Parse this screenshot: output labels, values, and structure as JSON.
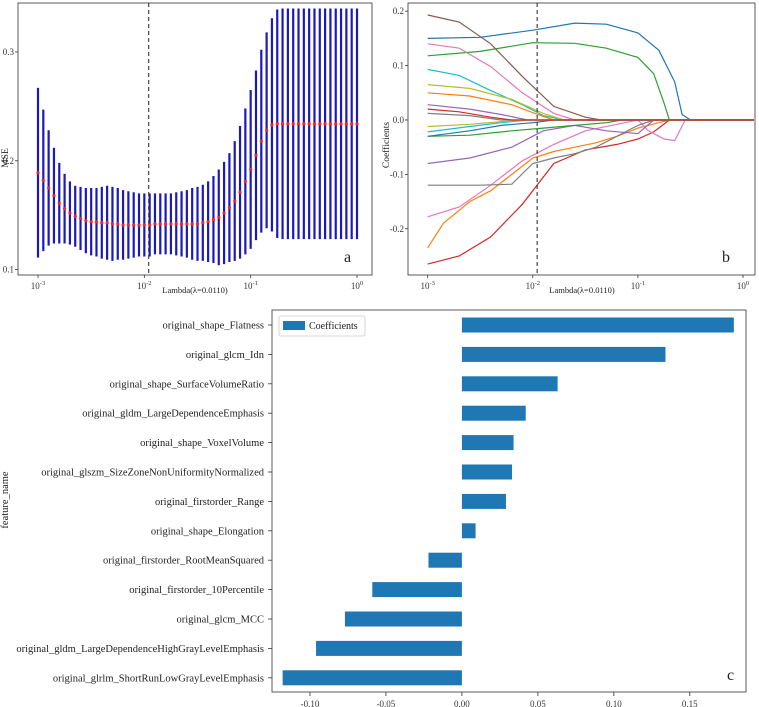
{
  "chart_data": [
    {
      "panel": "a",
      "type": "line",
      "xlabel": "Lambda(λ=0.0110)",
      "ylabel": "MSE",
      "xscale": "log",
      "xlim": [
        0.001,
        1.0
      ],
      "ylim": [
        0.095,
        0.345
      ],
      "xticks": [
        0.001,
        0.01,
        0.1,
        1.0
      ],
      "xticklabels": [
        "10-3",
        "10-2",
        "10-1",
        "100"
      ],
      "yticks": [
        0.1,
        0.2,
        0.3
      ],
      "yticklabels": [
        "0.1",
        "0.2",
        "0.3"
      ],
      "selected_lambda": 0.011,
      "series": [
        {
          "name": "MSE",
          "log10_lambda": [
            -3.0,
            -2.95,
            -2.9,
            -2.85,
            -2.8,
            -2.75,
            -2.7,
            -2.65,
            -2.6,
            -2.55,
            -2.5,
            -2.45,
            -2.4,
            -2.35,
            -2.3,
            -2.25,
            -2.2,
            -2.15,
            -2.1,
            -2.05,
            -2.0,
            -1.95,
            -1.9,
            -1.85,
            -1.8,
            -1.75,
            -1.7,
            -1.65,
            -1.6,
            -1.55,
            -1.5,
            -1.45,
            -1.4,
            -1.35,
            -1.3,
            -1.25,
            -1.2,
            -1.15,
            -1.1,
            -1.05,
            -1.0,
            -0.95,
            -0.9,
            -0.85,
            -0.8,
            -0.75,
            -0.7,
            -0.65,
            -0.6,
            -0.55,
            -0.5,
            -0.45,
            -0.4,
            -0.35,
            -0.3,
            -0.25,
            -0.2,
            -0.15,
            -0.1,
            -0.05,
            0.0
          ],
          "mean": [
            0.189,
            0.182,
            0.175,
            0.168,
            0.161,
            0.156,
            0.152,
            0.149,
            0.147,
            0.145,
            0.144,
            0.144,
            0.143,
            0.143,
            0.142,
            0.142,
            0.141,
            0.141,
            0.141,
            0.141,
            0.141,
            0.141,
            0.142,
            0.142,
            0.142,
            0.142,
            0.142,
            0.142,
            0.142,
            0.142,
            0.142,
            0.143,
            0.144,
            0.146,
            0.148,
            0.152,
            0.157,
            0.163,
            0.171,
            0.181,
            0.192,
            0.205,
            0.218,
            0.228,
            0.233,
            0.234,
            0.234,
            0.234,
            0.234,
            0.234,
            0.234,
            0.234,
            0.234,
            0.234,
            0.234,
            0.234,
            0.234,
            0.234,
            0.234,
            0.234,
            0.234
          ],
          "upper": [
            0.267,
            0.247,
            0.228,
            0.212,
            0.198,
            0.188,
            0.181,
            0.177,
            0.176,
            0.175,
            0.175,
            0.175,
            0.176,
            0.177,
            0.176,
            0.175,
            0.173,
            0.172,
            0.171,
            0.17,
            0.17,
            0.17,
            0.17,
            0.17,
            0.17,
            0.17,
            0.171,
            0.172,
            0.173,
            0.175,
            0.176,
            0.178,
            0.181,
            0.186,
            0.192,
            0.199,
            0.207,
            0.218,
            0.232,
            0.248,
            0.265,
            0.283,
            0.302,
            0.318,
            0.331,
            0.339,
            0.34,
            0.34,
            0.34,
            0.34,
            0.34,
            0.34,
            0.34,
            0.34,
            0.34,
            0.34,
            0.34,
            0.34,
            0.34,
            0.34,
            0.34
          ],
          "lower": [
            0.111,
            0.117,
            0.122,
            0.124,
            0.124,
            0.124,
            0.123,
            0.121,
            0.118,
            0.115,
            0.113,
            0.112,
            0.11,
            0.109,
            0.108,
            0.109,
            0.109,
            0.11,
            0.111,
            0.112,
            0.112,
            0.112,
            0.114,
            0.114,
            0.114,
            0.114,
            0.113,
            0.112,
            0.111,
            0.109,
            0.108,
            0.108,
            0.107,
            0.106,
            0.104,
            0.105,
            0.107,
            0.108,
            0.11,
            0.114,
            0.119,
            0.127,
            0.134,
            0.138,
            0.135,
            0.129,
            0.128,
            0.128,
            0.128,
            0.128,
            0.128,
            0.128,
            0.128,
            0.128,
            0.128,
            0.128,
            0.128,
            0.128,
            0.128,
            0.128,
            0.128
          ]
        }
      ]
    },
    {
      "panel": "b",
      "type": "line",
      "xlabel": "Lambda(λ=0.0110)",
      "ylabel": "Coefficients",
      "xscale": "log",
      "xlim": [
        0.00065,
        1.3
      ],
      "ylim": [
        -0.285,
        0.215
      ],
      "xticks": [
        0.001,
        0.01,
        0.1,
        1.0
      ],
      "xticklabels": [
        "10-3",
        "10-2",
        "10-1",
        "100"
      ],
      "yticks": [
        -0.2,
        -0.1,
        0.0,
        0.1,
        0.2
      ],
      "yticklabels": [
        "-0.2",
        "-0.1",
        "0.0",
        "0.1",
        "0.2"
      ],
      "selected_lambda": 0.011,
      "series": [
        {
          "name": "path1",
          "color": "#1f77b4",
          "log10_lambda": [
            -3.0,
            -2.5,
            -2.0,
            -1.6,
            -1.3,
            -1.0,
            -0.8,
            -0.65,
            -0.58,
            -0.5,
            0.0
          ],
          "values": [
            0.15,
            0.152,
            0.165,
            0.178,
            0.176,
            0.16,
            0.128,
            0.07,
            0.01,
            0.0,
            0.0
          ]
        },
        {
          "name": "path2",
          "color": "#2ca02c",
          "log10_lambda": [
            -3.0,
            -2.5,
            -2.0,
            -1.6,
            -1.3,
            -1.0,
            -0.85,
            -0.75,
            -0.7,
            0.0
          ],
          "values": [
            0.118,
            0.126,
            0.142,
            0.141,
            0.132,
            0.115,
            0.085,
            0.03,
            0.0,
            0.0
          ]
        },
        {
          "name": "path3",
          "color": "#8c564b",
          "log10_lambda": [
            -3.0,
            -2.7,
            -2.4,
            -2.1,
            -1.8,
            -1.5,
            -1.35,
            0.0
          ],
          "values": [
            0.193,
            0.18,
            0.14,
            0.08,
            0.025,
            0.005,
            0.0,
            0.0
          ]
        },
        {
          "name": "path4",
          "color": "#e377c2",
          "log10_lambda": [
            -3.0,
            -2.7,
            -2.4,
            -2.1,
            -1.8,
            -1.6,
            0.0
          ],
          "values": [
            0.14,
            0.132,
            0.098,
            0.05,
            0.012,
            0.0,
            0.0
          ]
        },
        {
          "name": "path5",
          "color": "#17becf",
          "log10_lambda": [
            -3.0,
            -2.7,
            -2.4,
            -2.1,
            -1.9,
            -1.7,
            0.0
          ],
          "values": [
            0.093,
            0.082,
            0.054,
            0.028,
            0.008,
            0.0,
            0.0
          ]
        },
        {
          "name": "path6",
          "color": "#bcbd22",
          "log10_lambda": [
            -3.0,
            -2.6,
            -2.2,
            -1.9,
            -1.7,
            0.0
          ],
          "values": [
            0.065,
            0.058,
            0.038,
            0.012,
            0.0,
            0.0
          ]
        },
        {
          "name": "path7",
          "color": "#ff7f0e",
          "log10_lambda": [
            -3.0,
            -2.6,
            -2.2,
            -1.95,
            -1.8,
            0.0
          ],
          "values": [
            0.05,
            0.044,
            0.028,
            0.01,
            0.0,
            0.0
          ]
        },
        {
          "name": "path8",
          "color": "#9467bd",
          "log10_lambda": [
            -3.0,
            -2.6,
            -2.3,
            -2.05,
            0.0
          ],
          "values": [
            0.028,
            0.02,
            0.01,
            0.0,
            0.0
          ]
        },
        {
          "name": "path9",
          "color": "#7f7f7f",
          "log10_lambda": [
            -3.0,
            -2.6,
            -2.3,
            0.0
          ],
          "values": [
            0.012,
            0.008,
            0.0,
            0.0
          ]
        },
        {
          "name": "path10",
          "color": "#d62728",
          "log10_lambda": [
            -3.0,
            -2.7,
            -2.4,
            -2.1,
            -1.8,
            -1.5,
            -1.2,
            -1.0,
            -0.85,
            -0.7,
            0.0
          ],
          "values": [
            -0.265,
            -0.25,
            -0.215,
            -0.155,
            -0.08,
            -0.055,
            -0.045,
            -0.035,
            -0.022,
            0.0,
            0.0
          ]
        },
        {
          "name": "path11",
          "color": "#ff7f0e",
          "log10_lambda": [
            -3.0,
            -2.85,
            -2.6,
            -2.4,
            -2.2,
            -2.0,
            -1.8,
            -1.6,
            -1.4,
            -1.2,
            -1.0,
            -0.8,
            -0.7,
            0.0
          ],
          "values": [
            -0.235,
            -0.19,
            -0.15,
            -0.13,
            -0.1,
            -0.07,
            -0.058,
            -0.05,
            -0.042,
            -0.03,
            -0.015,
            -0.005,
            0.0,
            0.0
          ]
        },
        {
          "name": "path12",
          "color": "#e377c2",
          "log10_lambda": [
            -3.0,
            -2.7,
            -2.4,
            -2.1,
            -1.8,
            -1.5,
            -1.2,
            -1.0,
            -0.9,
            -0.75,
            -0.65,
            -0.55,
            0.0
          ],
          "values": [
            -0.178,
            -0.16,
            -0.12,
            -0.075,
            -0.045,
            -0.02,
            -0.008,
            0.0,
            -0.02,
            -0.035,
            -0.038,
            0.0,
            0.0
          ]
        },
        {
          "name": "path13",
          "color": "#7f7f7f",
          "log10_lambda": [
            -3.0,
            -2.5,
            -2.2,
            -2.0,
            -1.8,
            -1.6,
            -1.4,
            -1.2,
            -1.0,
            -0.85,
            0.0
          ],
          "values": [
            -0.12,
            -0.12,
            -0.118,
            -0.08,
            -0.07,
            -0.062,
            -0.05,
            -0.03,
            -0.01,
            0.0,
            0.0
          ]
        },
        {
          "name": "path14",
          "color": "#9467bd",
          "log10_lambda": [
            -3.0,
            -2.6,
            -2.2,
            -1.9,
            -1.6,
            -1.3,
            -1.0,
            -0.85,
            0.0
          ],
          "values": [
            -0.08,
            -0.07,
            -0.05,
            -0.02,
            -0.01,
            -0.02,
            -0.025,
            0.0,
            0.0
          ]
        },
        {
          "name": "path15",
          "color": "#2ca02c",
          "log10_lambda": [
            -3.0,
            -2.6,
            -2.2,
            -1.9,
            -1.6,
            -1.3,
            -1.15,
            0.0
          ],
          "values": [
            -0.03,
            -0.028,
            -0.02,
            -0.015,
            -0.01,
            -0.005,
            0.0,
            0.0
          ]
        },
        {
          "name": "path16",
          "color": "#1f77b4",
          "log10_lambda": [
            -3.0,
            -2.6,
            -2.3,
            -2.0,
            -1.8,
            0.0
          ],
          "values": [
            -0.03,
            -0.02,
            -0.01,
            -0.005,
            0.0,
            0.0
          ]
        },
        {
          "name": "path17",
          "color": "#17becf",
          "log10_lambda": [
            -3.0,
            -2.6,
            -2.3,
            -2.05,
            0.0
          ],
          "values": [
            -0.022,
            -0.012,
            -0.005,
            0.0,
            0.0
          ]
        },
        {
          "name": "path18",
          "color": "#bcbd22",
          "log10_lambda": [
            -3.0,
            -2.6,
            -2.3,
            -2.05,
            0.0
          ],
          "values": [
            -0.012,
            -0.008,
            -0.003,
            0.0,
            0.0
          ]
        },
        {
          "name": "path19",
          "color": "#d62728",
          "log10_lambda": [
            -3.0,
            -2.7,
            -2.4,
            -2.2,
            0.0
          ],
          "values": [
            0.02,
            0.015,
            0.005,
            0.0,
            0.0
          ]
        }
      ]
    },
    {
      "panel": "c",
      "type": "bar",
      "orientation": "horizontal",
      "ylabel": "feature_name",
      "legend": "Coefficients",
      "legend_position": "top-left",
      "xlim": [
        -0.125,
        0.187
      ],
      "xticks": [
        -0.1,
        -0.05,
        0.0,
        0.05,
        0.1,
        0.15
      ],
      "xticklabels": [
        "-0.10",
        "-0.05",
        "0.00",
        "0.05",
        "0.10",
        "0.15"
      ],
      "color": "#1f77b4",
      "categories": [
        "original_shape_Flatness",
        "original_glcm_Idn",
        "original_shape_SurfaceVolumeRatio",
        "original_gldm_LargeDependenceEmphasis",
        "original_shape_VoxelVolume",
        "original_glszm_SizeZoneNonUniformityNormalized",
        "original_firstorder_Range",
        "original_shape_Elongation",
        "original_firstorder_RootMeanSquared",
        "original_firstorder_10Percentile",
        "original_glcm_MCC",
        "original_gldm_LargeDependenceHighGrayLevelEmphasis",
        "original_glrlm_ShortRunLowGrayLevelEmphasis"
      ],
      "values": [
        0.179,
        0.134,
        0.063,
        0.042,
        0.034,
        0.033,
        0.029,
        0.009,
        -0.022,
        -0.059,
        -0.077,
        -0.096,
        -0.118
      ]
    }
  ],
  "panel_letters": {
    "a": "a",
    "b": "b",
    "c": "c"
  }
}
